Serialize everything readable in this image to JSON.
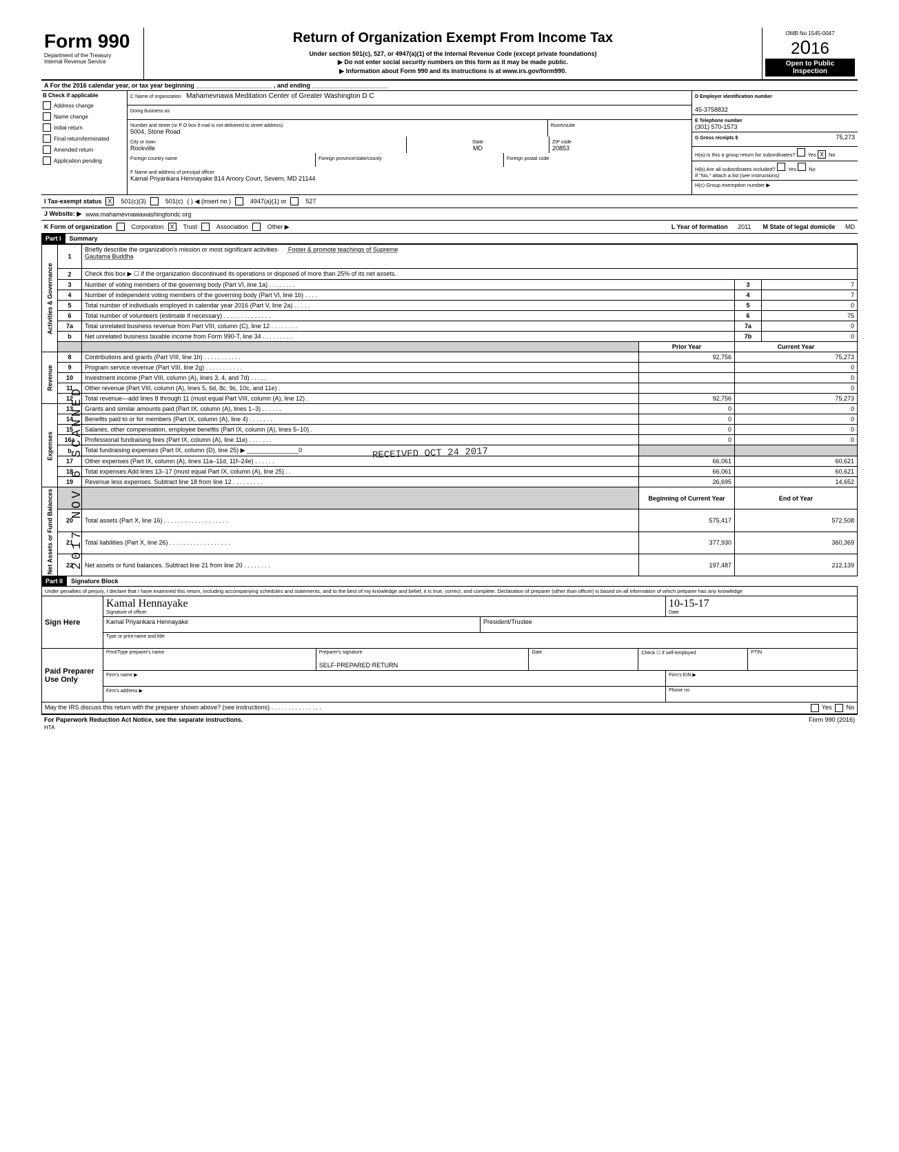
{
  "header": {
    "form": "Form 990",
    "dept": "Department of the Treasury",
    "irs": "Internal Revenue Service",
    "title": "Return of Organization Exempt From Income Tax",
    "subtitle": "Under section 501(c), 527, or 4947(a)(1) of the Internal Revenue Code (except private foundations)",
    "ssn_warn": "▶  Do not enter social security numbers on this form as it may be made public.",
    "info_line": "▶  Information about Form 990 and its instructions is at www.irs.gov/form990.",
    "omb": "OMB No  1545-0047",
    "year": "2016",
    "open": "Open to Public",
    "inspection": "Inspection"
  },
  "rowA": "A   For the 2016 calendar year, or tax year beginning ______________________ , and ending ______________________",
  "colB": {
    "header": "B  Check if applicable",
    "items": [
      "Address change",
      "Name change",
      "Initial return",
      "Final return/terminated",
      "Amended return",
      "Application pending"
    ]
  },
  "colC": {
    "name_label": "C  Name of organization",
    "name": "Mahamevnawa Meditation Center of Greater Washington D C",
    "dba_label": "Doing business as",
    "addr_label": "Number and street (or P O  box if mail is not delivered to street address)",
    "room_label": "Room/suite",
    "addr": "5004, Stone Road",
    "city_label": "City or town",
    "city": "Rockville",
    "state_label": "State",
    "state": "MD",
    "zip_label": "ZIP code",
    "zip": "20853",
    "foreign_country": "Foreign country name",
    "foreign_province": "Foreign province/state/county",
    "foreign_postal": "Foreign postal code",
    "officer_label": "F  Name and address of principal officer",
    "officer": "Kamal Priyankara Hennayake 814 Amory Court, Severn, MD  21144"
  },
  "colD": {
    "ein_label": "D   Employer identification number",
    "ein": "45-3758832",
    "phone_label": "E  Telephone number",
    "phone": "(301) 570-1573",
    "gross_label": "G  Gross receipts $",
    "gross": "75,273",
    "ha": "H(a) Is this a group return for subordinates?",
    "ha_no": "X",
    "hb": "H(b) Are all subordinates included?",
    "hb_note": "If \"No,\" attach a list  (see instructions)",
    "hc": "H(c) Group exemption number ▶"
  },
  "rowI": {
    "label": "I   Tax-exempt status",
    "c3_checked": "X",
    "opts": [
      "501(c)(3)",
      "501(c)",
      "(        )  ◀ (insert no )",
      "4947(a)(1) or",
      "527"
    ]
  },
  "rowJ": {
    "label": "J   Website: ▶",
    "value": "www.mahamevnawawashingtondc org"
  },
  "rowK": {
    "label": "K  Form of organization",
    "opts": [
      "Corporation",
      "Trust",
      "Association",
      "Other ▶"
    ],
    "trust_checked": "X",
    "L": "L Year of formation",
    "L_val": "2011",
    "M": "M State of legal domicile",
    "M_val": "MD"
  },
  "part1": {
    "header": "Part I",
    "title": "Summary"
  },
  "activities": {
    "label": "Activities & Governance",
    "rows": [
      {
        "n": "1",
        "desc": "Briefly describe the organization's mission or most significant activities·",
        "val_text": "Foster & promote teachings of Supreme",
        "line2": "Gautama Buddha"
      },
      {
        "n": "2",
        "desc": "Check this box  ▶ ☐  if the organization discontinued its operations or disposed of more than 25% of its net assets."
      },
      {
        "n": "3",
        "desc": "Number of voting members of the governing body (Part VI, line 1a)  . . . . . . . .",
        "box": "3",
        "cur": "7"
      },
      {
        "n": "4",
        "desc": "Number of independent voting members of the governing body (Part VI, line 1b) . . . .",
        "box": "4",
        "cur": "7"
      },
      {
        "n": "5",
        "desc": "Total number of individuals employed in calendar year 2016 (Part V, line 2a) . . . . .",
        "box": "5",
        "cur": "0"
      },
      {
        "n": "6",
        "desc": "Total number of volunteers (estimate if necessary) . . . . . . . . . . . . . .",
        "box": "6",
        "cur": "75"
      },
      {
        "n": "7a",
        "desc": "Total unrelated business revenue from Part VIII, column (C), line 12 . . . . . . . .",
        "box": "7a",
        "cur": "0"
      },
      {
        "n": "b",
        "desc": "Net unrelated business taxable income from Form 990-T, line 34 . . . . . . . . .",
        "box": "7b",
        "cur": "0"
      }
    ]
  },
  "revenue": {
    "label": "Revenue",
    "head_prior": "Prior Year",
    "head_current": "Current Year",
    "rows": [
      {
        "n": "8",
        "desc": "Contributions and grants (Part VIII, line 1h) . . . . . . . . . . .",
        "prior": "92,756",
        "cur": "75,273"
      },
      {
        "n": "9",
        "desc": "Program service revenue (Part VIII, line 2g) . . . . . . . . . . .",
        "prior": "",
        "cur": "0"
      },
      {
        "n": "10",
        "desc": "Investment income (Part VIII, column (A), lines 3, 4, and 7d) . . . . .",
        "prior": "",
        "cur": "0"
      },
      {
        "n": "11",
        "desc": "Other revenue (Part VIII, column (A), lines 5, 6d, 8c, 9c, 10c, and 11e) .",
        "prior": "",
        "cur": "0"
      },
      {
        "n": "12",
        "desc": "Total revenue—add lines 8 through 11 (must equal Part VIII, column (A), line 12) .",
        "prior": "92,756",
        "cur": "75,273"
      }
    ]
  },
  "expenses": {
    "label": "Expenses",
    "rows": [
      {
        "n": "13",
        "desc": "Grants and similar amounts paid (Part IX, column (A), lines 1–3) . . . . . .",
        "prior": "0",
        "cur": "0"
      },
      {
        "n": "14",
        "desc": "Benefits paid to or for members (Part IX, column (A), line 4) . . . . . . .",
        "prior": "0",
        "cur": "0"
      },
      {
        "n": "15",
        "desc": "Salaries, other compensation, employee benefits (Part IX, column (A), lines 5–10) .",
        "prior": "0",
        "cur": "0"
      },
      {
        "n": "16a",
        "desc": "Professional fundraising fees (Part IX, column (A), line 11e) . . . . . . .",
        "prior": "0",
        "cur": "0"
      },
      {
        "n": "b",
        "desc": "Total fundraising expenses (Part IX, column (D), line 25) ▶ _______________0",
        "prior": "",
        "cur": "",
        "shaded": true
      },
      {
        "n": "17",
        "desc": "Other expenses (Part IX, column (A), lines 11a–11d, 11f–24e) . . . . . .",
        "prior": "66,061",
        "cur": "60,621"
      },
      {
        "n": "18",
        "desc": "Total expenses  Add lines 13–17 (must equal Part IX, column (A), line 25) . .",
        "prior": "66,061",
        "cur": "60,621"
      },
      {
        "n": "19",
        "desc": "Revenue less expenses. Subtract line 18 from line 12 . . . . . . . . .",
        "prior": "26,695",
        "cur": "14,652"
      }
    ]
  },
  "netassets": {
    "label": "Net Assets or Fund Balances",
    "head_prior": "Beginning of Current Year",
    "head_current": "End of Year",
    "rows": [
      {
        "n": "20",
        "desc": "Total assets (Part X, line 16) . . . . . . . . . . . . . . . . . . .",
        "prior": "575,417",
        "cur": "572,508"
      },
      {
        "n": "21",
        "desc": "Total liabilities (Part X, line 26) . . . . . . . . . . . . . . . . . .",
        "prior": "377,930",
        "cur": "360,369"
      },
      {
        "n": "22",
        "desc": "Net assets or fund balances. Subtract line 21 from line 20 . . . . . . . .",
        "prior": "197,487",
        "cur": "212,139"
      }
    ]
  },
  "part2": {
    "header": "Part II",
    "title": "Signature Block",
    "declare": "Under penalties of perjury, I declare that I have examined this return, including accompanying schedules and statements, and to the best of my knowledge and belief, it is true, correct, and complete. Declaration of preparer (other than officer) is based on all information of which preparer has any knowledge"
  },
  "sign": {
    "label": "Sign Here",
    "sig_script": "Kamal Hennayake",
    "sig_label": "Signature of officer",
    "date": "10-15-17",
    "date_label": "Date",
    "name": "Kamal Priyankara Hennayake",
    "title": "President/Trustee",
    "name_label": "Type or print name and title"
  },
  "paid": {
    "label": "Paid Preparer Use Only",
    "prep_name_label": "Print/Type preparer's name",
    "prep_sig_label": "Preparer's signature",
    "prep_sig": "SELF-PREPARED RETURN",
    "date_label": "Date",
    "check_label": "Check ☐ if self-employed",
    "ptin_label": "PTIN",
    "firm_name_label": "Firm's name  ▶",
    "firm_ein_label": "Firm's EIN ▶",
    "firm_addr_label": "Firm's address ▶",
    "phone_label": "Phone no"
  },
  "footer": {
    "discuss": "May the IRS discuss this return with the preparer shown above? (see instructions) . . . . . . . . . . . . . . .",
    "yes": "Yes",
    "no": "No",
    "pra": "For Paperwork Reduction Act Notice, see the separate instructions.",
    "hta": "HTA",
    "form": "Form 990 (2016)"
  },
  "stamps": {
    "received": "RECEIVED  OCT 24 2017",
    "vertical": "2017 NOV 6  SCANNED"
  }
}
